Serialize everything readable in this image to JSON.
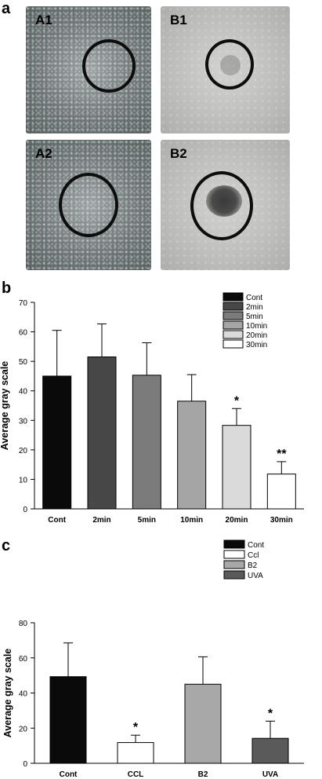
{
  "panel_a": {
    "letter": "a",
    "images": [
      {
        "label": "A1"
      },
      {
        "label": "B1"
      },
      {
        "label": "A2"
      },
      {
        "label": "B2"
      }
    ]
  },
  "panel_b": {
    "letter": "b"
  },
  "panel_c": {
    "letter": "c"
  },
  "chart_data": [
    {
      "type": "bar",
      "ylabel": "Average gray scale",
      "xlabel": "",
      "ylim": [
        0,
        70
      ],
      "yticks": [
        0,
        10,
        20,
        30,
        40,
        50,
        60,
        70
      ],
      "categories": [
        "Cont",
        "2min",
        "5min",
        "10min",
        "20min",
        "30min"
      ],
      "values": [
        45,
        51.5,
        45.3,
        36.5,
        28.3,
        11.8
      ],
      "errors": [
        15.5,
        11.2,
        11,
        9,
        5.7,
        4.2
      ],
      "annotations": [
        "",
        "",
        "",
        "",
        "*",
        "**"
      ],
      "colors": [
        "#0a0a0a",
        "#474747",
        "#7b7b7b",
        "#a5a5a5",
        "#dadada",
        "#ffffff"
      ],
      "legend": [
        "Cont",
        "2min",
        "5min",
        "10min",
        "20min",
        "30min"
      ],
      "legend_position": "top-right",
      "grid": false
    },
    {
      "type": "bar",
      "ylabel": "Average gray scale",
      "xlabel": "",
      "ylim": [
        0,
        80
      ],
      "yticks": [
        0,
        20,
        40,
        60,
        80
      ],
      "categories": [
        "Cont",
        "CCL",
        "B2",
        "UVA"
      ],
      "values": [
        49.3,
        11.8,
        45,
        14.2
      ],
      "errors": [
        19.2,
        4.2,
        15.6,
        9.8
      ],
      "annotations": [
        "",
        "*",
        "",
        "*"
      ],
      "colors": [
        "#0a0a0a",
        "#ffffff",
        "#a8a8a8",
        "#5a5a5a"
      ],
      "legend": [
        "Cont",
        "Ccl",
        "B2",
        "UVA"
      ],
      "legend_position": "top-right",
      "grid": false
    }
  ]
}
